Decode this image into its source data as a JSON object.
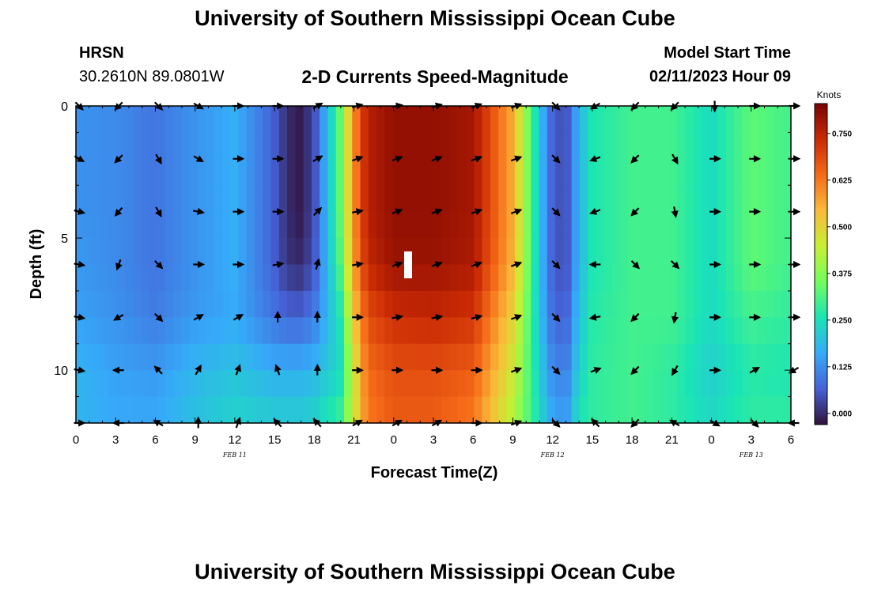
{
  "header": {
    "title": "University of Southern Mississippi Ocean Cube",
    "station": "HRSN",
    "coords": "30.2610N  89.0801W",
    "plot_title": "2-D Currents Speed-Magnitude",
    "model_start_label": "Model Start Time",
    "model_start_value": "02/11/2023 Hour 09"
  },
  "footer": {
    "title": "University of Southern Mississippi Ocean Cube"
  },
  "chart_data": {
    "type": "heatmap",
    "title": "2-D Currents Speed-Magnitude",
    "xlabel": "Forecast Time(Z)",
    "ylabel": "Depth (ft)",
    "x_ticks": [
      "0",
      "3",
      "6",
      "9",
      "12",
      "15",
      "18",
      "21",
      "0",
      "3",
      "6",
      "9",
      "12",
      "15",
      "18",
      "21",
      "0",
      "3",
      "6"
    ],
    "x_range_hours": [
      0,
      54
    ],
    "y_range": [
      0,
      12
    ],
    "y_ticks": [
      0,
      5,
      10
    ],
    "y_inverted": true,
    "date_labels": [
      {
        "text": "FEB 11",
        "hour": 12
      },
      {
        "text": "FEB 12",
        "hour": 36
      },
      {
        "text": "FEB 13",
        "hour": 51
      }
    ],
    "colorbar": {
      "label": "Knots",
      "ticks": [
        "0.000",
        "0.125",
        "0.250",
        "0.375",
        "0.500",
        "0.625",
        "0.750"
      ],
      "range": [
        -0.03,
        0.83
      ]
    },
    "colorscale": [
      "#30123b",
      "#4662d7",
      "#36aaf9",
      "#1ae4b6",
      "#72fe5e",
      "#c8ef34",
      "#faba39",
      "#f66b19",
      "#ca2a04",
      "#7a0403"
    ],
    "depths": [
      0,
      2,
      4,
      6,
      8,
      10,
      12
    ],
    "hours": [
      0,
      3,
      6,
      9,
      12,
      15,
      16,
      17,
      18,
      20,
      21,
      22,
      24,
      27,
      30,
      33,
      35,
      36,
      37,
      38,
      39,
      42,
      45,
      48,
      51,
      54
    ],
    "speed": [
      [
        0.13,
        0.12,
        0.09,
        0.13,
        0.17,
        0.06,
        0.0,
        -0.02,
        0.04,
        0.34,
        0.6,
        0.76,
        0.8,
        0.8,
        0.78,
        0.56,
        0.2,
        0.06,
        0.04,
        0.18,
        0.26,
        0.3,
        0.3,
        0.24,
        0.33,
        0.3
      ],
      [
        0.13,
        0.12,
        0.09,
        0.13,
        0.17,
        0.06,
        0.0,
        -0.02,
        0.04,
        0.34,
        0.6,
        0.76,
        0.8,
        0.8,
        0.78,
        0.56,
        0.2,
        0.06,
        0.04,
        0.18,
        0.26,
        0.3,
        0.3,
        0.24,
        0.33,
        0.3
      ],
      [
        0.13,
        0.12,
        0.09,
        0.13,
        0.17,
        0.06,
        0.0,
        -0.02,
        0.04,
        0.34,
        0.6,
        0.76,
        0.8,
        0.8,
        0.78,
        0.56,
        0.2,
        0.06,
        0.04,
        0.18,
        0.26,
        0.3,
        0.3,
        0.24,
        0.33,
        0.3
      ],
      [
        0.14,
        0.12,
        0.09,
        0.13,
        0.17,
        0.06,
        0.01,
        0.0,
        0.05,
        0.32,
        0.58,
        0.74,
        0.79,
        0.79,
        0.77,
        0.55,
        0.2,
        0.06,
        0.04,
        0.18,
        0.26,
        0.3,
        0.3,
        0.24,
        0.33,
        0.3
      ],
      [
        0.15,
        0.13,
        0.1,
        0.14,
        0.16,
        0.09,
        0.07,
        0.07,
        0.1,
        0.26,
        0.52,
        0.68,
        0.73,
        0.74,
        0.72,
        0.5,
        0.2,
        0.08,
        0.06,
        0.2,
        0.27,
        0.3,
        0.3,
        0.24,
        0.3,
        0.28
      ],
      [
        0.18,
        0.15,
        0.14,
        0.18,
        0.2,
        0.17,
        0.17,
        0.17,
        0.18,
        0.24,
        0.46,
        0.64,
        0.68,
        0.68,
        0.66,
        0.46,
        0.22,
        0.12,
        0.1,
        0.22,
        0.28,
        0.3,
        0.28,
        0.22,
        0.27,
        0.26
      ],
      [
        0.18,
        0.16,
        0.16,
        0.2,
        0.23,
        0.22,
        0.22,
        0.22,
        0.23,
        0.3,
        0.46,
        0.62,
        0.66,
        0.66,
        0.62,
        0.42,
        0.24,
        0.16,
        0.14,
        0.26,
        0.28,
        0.3,
        0.28,
        0.24,
        0.28,
        0.28
      ]
    ],
    "vectors": {
      "hours": [
        0,
        3,
        6,
        9,
        12,
        15,
        18,
        21,
        24,
        27,
        30,
        33,
        36,
        39,
        42,
        45,
        48,
        51,
        54
      ],
      "depths": [
        0,
        2,
        4,
        6,
        8,
        10,
        12
      ],
      "directions_deg": [
        [
          135,
          225,
          135,
          120,
          90,
          90,
          60,
          75,
          80,
          75,
          70,
          70,
          135,
          240,
          225,
          225,
          180,
          90,
          90
        ],
        [
          120,
          225,
          150,
          120,
          90,
          90,
          60,
          70,
          70,
          70,
          70,
          70,
          135,
          250,
          225,
          150,
          90,
          90,
          90
        ],
        [
          105,
          220,
          150,
          100,
          90,
          90,
          45,
          80,
          70,
          70,
          70,
          70,
          135,
          250,
          225,
          170,
          90,
          90,
          90
        ],
        [
          100,
          200,
          135,
          90,
          90,
          80,
          15,
          80,
          70,
          70,
          70,
          70,
          135,
          270,
          135,
          135,
          90,
          90,
          90
        ],
        [
          100,
          240,
          135,
          60,
          60,
          0,
          0,
          90,
          80,
          80,
          75,
          70,
          135,
          260,
          225,
          190,
          90,
          90,
          90
        ],
        [
          100,
          270,
          315,
          30,
          20,
          340,
          0,
          90,
          90,
          90,
          90,
          70,
          135,
          70,
          225,
          210,
          90,
          60,
          240
        ],
        [
          90,
          270,
          300,
          0,
          20,
          315,
          315,
          60,
          60,
          60,
          90,
          70,
          135,
          315,
          225,
          300,
          120,
          135,
          270
        ]
      ]
    }
  }
}
